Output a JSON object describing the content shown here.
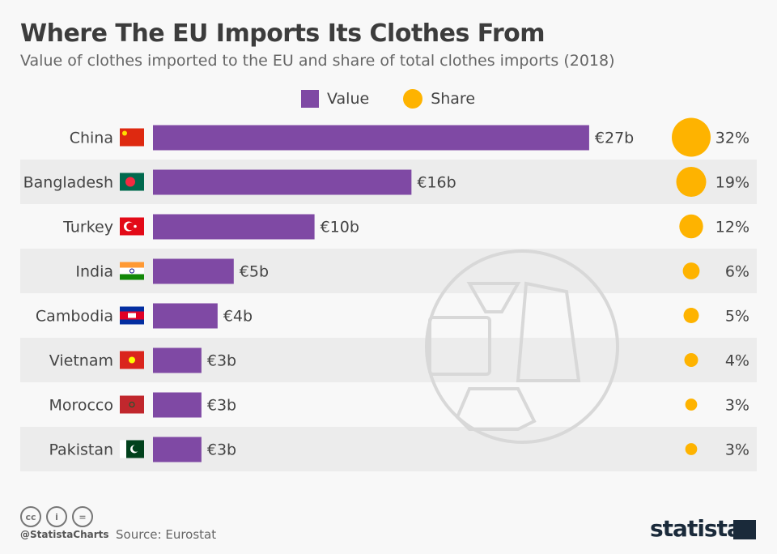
{
  "title": "Where The EU Imports Its Clothes From",
  "subtitle": "Value of clothes imported to the EU and share of total clothes imports (2018)",
  "legend": {
    "value": "Value",
    "share": "Share"
  },
  "footer": {
    "handle": "@StatistaCharts",
    "source": "Source: Eurostat",
    "logo": "statista"
  },
  "chart_data": {
    "type": "bar",
    "categories": [
      "China",
      "Bangladesh",
      "Turkey",
      "India",
      "Cambodia",
      "Vietnam",
      "Morocco",
      "Pakistan"
    ],
    "series": [
      {
        "name": "Value",
        "unit": "€ billion",
        "values": [
          27,
          16,
          10,
          5,
          4,
          3,
          3,
          3
        ],
        "labels": [
          "€27b",
          "€16b",
          "€10b",
          "€5b",
          "€4b",
          "€3b",
          "€3b",
          "€3b"
        ],
        "color": "#7f49a4"
      },
      {
        "name": "Share",
        "unit": "%",
        "values": [
          32,
          19,
          12,
          6,
          5,
          4,
          3,
          3
        ],
        "labels": [
          "32%",
          "19%",
          "12%",
          "6%",
          "5%",
          "4%",
          "3%",
          "3%"
        ],
        "color": "#feb300"
      }
    ],
    "flags": [
      "china",
      "bangladesh",
      "turkey",
      "india",
      "cambodia",
      "vietnam",
      "morocco",
      "pakistan"
    ]
  }
}
